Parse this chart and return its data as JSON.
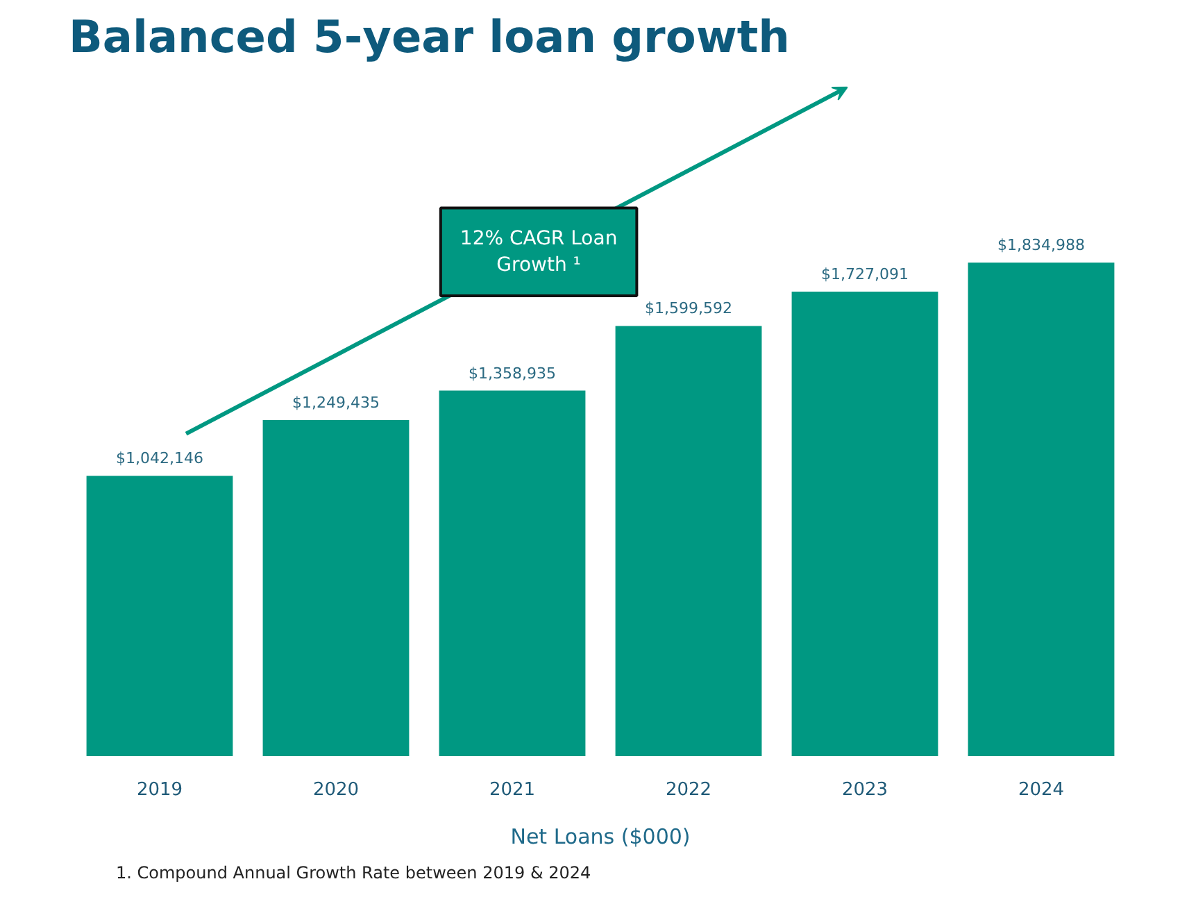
{
  "chart_data": {
    "type": "bar",
    "title": "Balanced 5-year loan growth",
    "xlabel": "Net Loans ($000)",
    "categories": [
      "2019",
      "2020",
      "2021",
      "2022",
      "2023",
      "2024"
    ],
    "values": [
      1042146,
      1249435,
      1358935,
      1599592,
      1727091,
      1834988
    ],
    "value_labels": [
      "$1,042,146",
      "$1,249,435",
      "$1,358,935",
      "$1,599,592",
      "$1,727,091",
      "$1,834,988"
    ],
    "color": "#009882",
    "grid": false,
    "annotations": [
      "12% CAGR Loan Growth ¹",
      "1. Compound Annual Growth Rate between 2019 & 2024"
    ]
  }
}
